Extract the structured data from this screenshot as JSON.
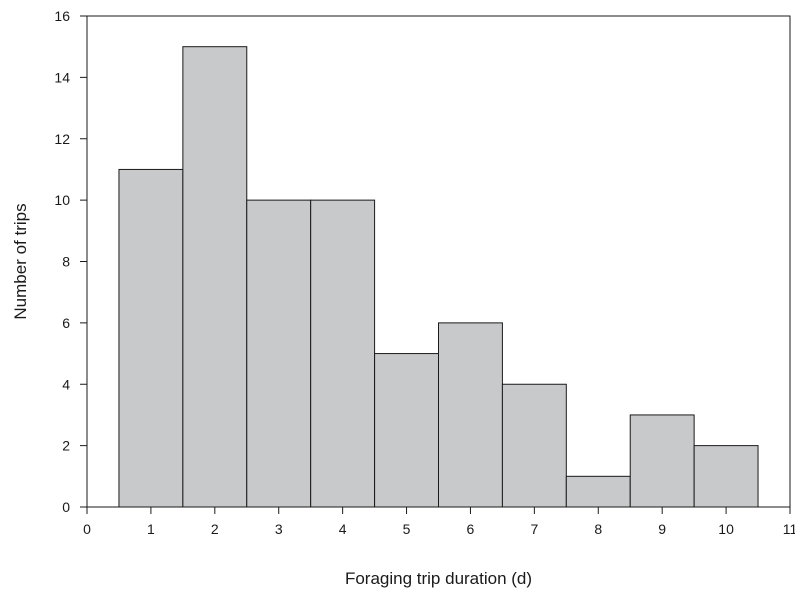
{
  "chart_data": {
    "type": "bar",
    "title": "",
    "xlabel": "Foraging trip duration (d)",
    "ylabel": "Number of trips",
    "categories": [
      "1",
      "2",
      "3",
      "4",
      "5",
      "6",
      "7",
      "8",
      "9",
      "10"
    ],
    "x": [
      1,
      2,
      3,
      4,
      5,
      6,
      7,
      8,
      9,
      10
    ],
    "values": [
      11,
      15,
      10,
      10,
      5,
      6,
      4,
      1,
      3,
      2
    ],
    "bin_width": 1,
    "xlim": [
      0,
      11
    ],
    "ylim": [
      0,
      16
    ],
    "xticks": [
      0,
      1,
      2,
      3,
      4,
      5,
      6,
      7,
      8,
      9,
      10,
      11
    ],
    "yticks": [
      0,
      2,
      4,
      6,
      8,
      10,
      12,
      14,
      16
    ],
    "grid": false,
    "legend": "none",
    "colors": {
      "bar_fill": "#c8c9cb",
      "bar_stroke": "#1a1a1a",
      "axis": "#1a1a1a"
    }
  }
}
